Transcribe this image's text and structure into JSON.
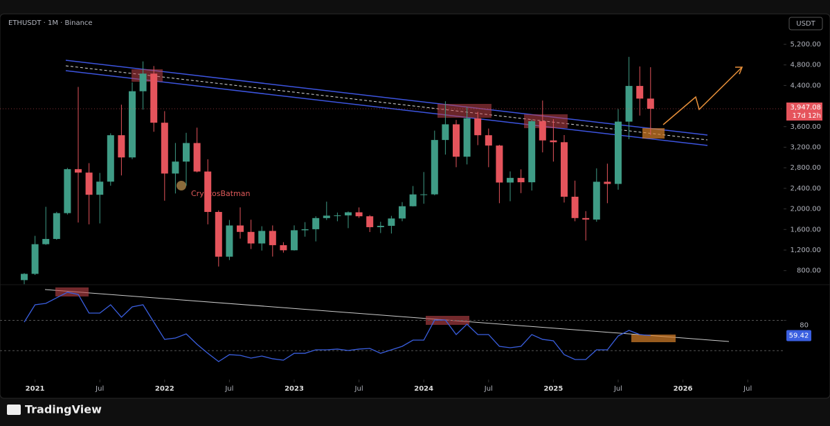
{
  "chart_data": {
    "type": "candlestick",
    "title": "ETHUSDT · 1M · Binance",
    "currency": "USDT",
    "annotation": "CryptosBatman",
    "categories": [
      "2020-12",
      "2021-01",
      "2021-02",
      "2021-03",
      "2021-04",
      "2021-05",
      "2021-06",
      "2021-07",
      "2021-08",
      "2021-09",
      "2021-10",
      "2021-11",
      "2021-12",
      "2022-01",
      "2022-02",
      "2022-03",
      "2022-04",
      "2022-05",
      "2022-06",
      "2022-07",
      "2022-08",
      "2022-09",
      "2022-10",
      "2022-11",
      "2022-12",
      "2023-01",
      "2023-02",
      "2023-03",
      "2023-04",
      "2023-05",
      "2023-06",
      "2023-07",
      "2023-08",
      "2023-09",
      "2023-10",
      "2023-11",
      "2023-12",
      "2024-01",
      "2024-02",
      "2024-03",
      "2024-04",
      "2024-05",
      "2024-06",
      "2024-07",
      "2024-08",
      "2024-09",
      "2024-10",
      "2024-11",
      "2024-12",
      "2025-01",
      "2025-02",
      "2025-03",
      "2025-04",
      "2025-05",
      "2025-06",
      "2025-07",
      "2025-08",
      "2025-09",
      "2025-10"
    ],
    "open": [
      616,
      737,
      1314,
      1416,
      1918,
      2773,
      2706,
      2275,
      2530,
      3433,
      3001,
      4288,
      4631,
      3676,
      2688,
      2920,
      3281,
      2727,
      1941,
      1071,
      1678,
      1553,
      1328,
      1572,
      1295,
      1196,
      1585,
      1605,
      1822,
      1869,
      1874,
      1934,
      1857,
      1645,
      1671,
      1814,
      2052,
      2282,
      2283,
      3340,
      3645,
      3015,
      3763,
      3433,
      3232,
      2513,
      2603,
      2518,
      3705,
      3332,
      3297,
      2237,
      1822,
      1793,
      2528,
      2486,
      3697,
      4391,
      4145
    ],
    "high": [
      752,
      1476,
      2041,
      1943,
      2797,
      4372,
      2890,
      2700,
      3470,
      4027,
      4460,
      4868,
      4778,
      3900,
      3282,
      3480,
      3580,
      2965,
      1972,
      1785,
      2030,
      1790,
      1663,
      1679,
      1353,
      1680,
      1743,
      1857,
      2141,
      1929,
      1950,
      2029,
      1880,
      1750,
      1865,
      2133,
      2445,
      2717,
      3522,
      4093,
      3730,
      3977,
      3887,
      3563,
      3247,
      2728,
      2769,
      3737,
      4107,
      3744,
      3435,
      2550,
      1957,
      2788,
      2880,
      3941,
      4956,
      4770,
      4755
    ],
    "low": [
      536,
      715,
      1300,
      1400,
      1891,
      1735,
      1700,
      1718,
      2451,
      2651,
      2968,
      3930,
      3500,
      2159,
      2300,
      2450,
      2710,
      1700,
      880,
      1006,
      1422,
      1220,
      1190,
      1073,
      1150,
      1190,
      1460,
      1368,
      1785,
      1760,
      1626,
      1825,
      1550,
      1531,
      1521,
      1761,
      2047,
      2100,
      2265,
      3056,
      2811,
      2865,
      3240,
      2811,
      2111,
      2150,
      2307,
      2357,
      3100,
      2920,
      2125,
      1760,
      1385,
      1751,
      2111,
      2373,
      3355,
      3815,
      3435
    ],
    "close": [
      737,
      1314,
      1416,
      1918,
      2773,
      2706,
      2275,
      2530,
      3433,
      3001,
      4288,
      4631,
      3676,
      2688,
      2920,
      3281,
      2727,
      1941,
      1071,
      1678,
      1553,
      1328,
      1572,
      1295,
      1196,
      1585,
      1605,
      1822,
      1869,
      1874,
      1934,
      1857,
      1645,
      1671,
      1814,
      2052,
      2282,
      2283,
      3340,
      3645,
      3015,
      3763,
      3433,
      3232,
      2513,
      2603,
      2518,
      3705,
      3332,
      3297,
      2237,
      1822,
      1793,
      2528,
      2486,
      3697,
      4391,
      4145,
      3947.08
    ],
    "up_color": "#3f9c86",
    "down_color": "#e5545c",
    "ylim": [
      540,
      5800
    ],
    "yticks": [
      {
        "value": 800,
        "label": "800.00"
      },
      {
        "value": 1200,
        "label": "1,200.00"
      },
      {
        "value": 1600,
        "label": "1,600.00"
      },
      {
        "value": 2000,
        "label": "2,000.00"
      },
      {
        "value": 2400,
        "label": "2,400.00"
      },
      {
        "value": 2800,
        "label": "2,800.00"
      },
      {
        "value": 3200,
        "label": "3,200.00"
      },
      {
        "value": 3600,
        "label": "3,600.00"
      },
      {
        "value": 4400,
        "label": "4,400.00"
      },
      {
        "value": 4800,
        "label": "4,800.00"
      },
      {
        "value": 5200,
        "label": "5,200.00"
      }
    ],
    "xticks": [
      {
        "value": "2021-01",
        "label": "2021"
      },
      {
        "value": "2021-07",
        "label": "Jul"
      },
      {
        "value": "2022-01",
        "label": "2022"
      },
      {
        "value": "2022-07",
        "label": "Jul"
      },
      {
        "value": "2023-01",
        "label": "2023"
      },
      {
        "value": "2023-07",
        "label": "Jul"
      },
      {
        "value": "2024-01",
        "label": "2024"
      },
      {
        "value": "2024-07",
        "label": "Jul"
      },
      {
        "value": "2025-01",
        "label": "2025"
      },
      {
        "value": "2025-07",
        "label": "Jul"
      },
      {
        "value": "2026-01",
        "label": "2026"
      },
      {
        "value": "2026-07",
        "label": "Jul"
      }
    ],
    "last_price": {
      "value": 3947.08,
      "label": "3,947.08"
    },
    "countdown": "17d 12h",
    "rsi": {
      "color": "#3a5fe0",
      "ylim": [
        0,
        130
      ],
      "yticks": [
        80
      ],
      "bands": [
        80,
        39
      ],
      "values": [
        77.6,
        101.0,
        102.9,
        110.4,
        117.9,
        115.1,
        89.8,
        89.8,
        101.0,
        84.2,
        98.2,
        101.0,
        77.6,
        54.3,
        56.1,
        61.7,
        47.7,
        35.5,
        24.3,
        33.7,
        32.7,
        29.0,
        31.8,
        28.1,
        26.2,
        35.5,
        35.5,
        40.2,
        40.2,
        41.2,
        39.3,
        41.2,
        42.1,
        35.5,
        40.2,
        44.9,
        53.3,
        53.3,
        80.4,
        80.4,
        60.8,
        74.8,
        60.8,
        60.8,
        44.9,
        43.0,
        44.9,
        60.8,
        54.3,
        52.4,
        33.7,
        27.1,
        27.1,
        40.2,
        40.2,
        58.9,
        66.4,
        60.8,
        59.42
      ]
    }
  },
  "brand": "TradingView"
}
